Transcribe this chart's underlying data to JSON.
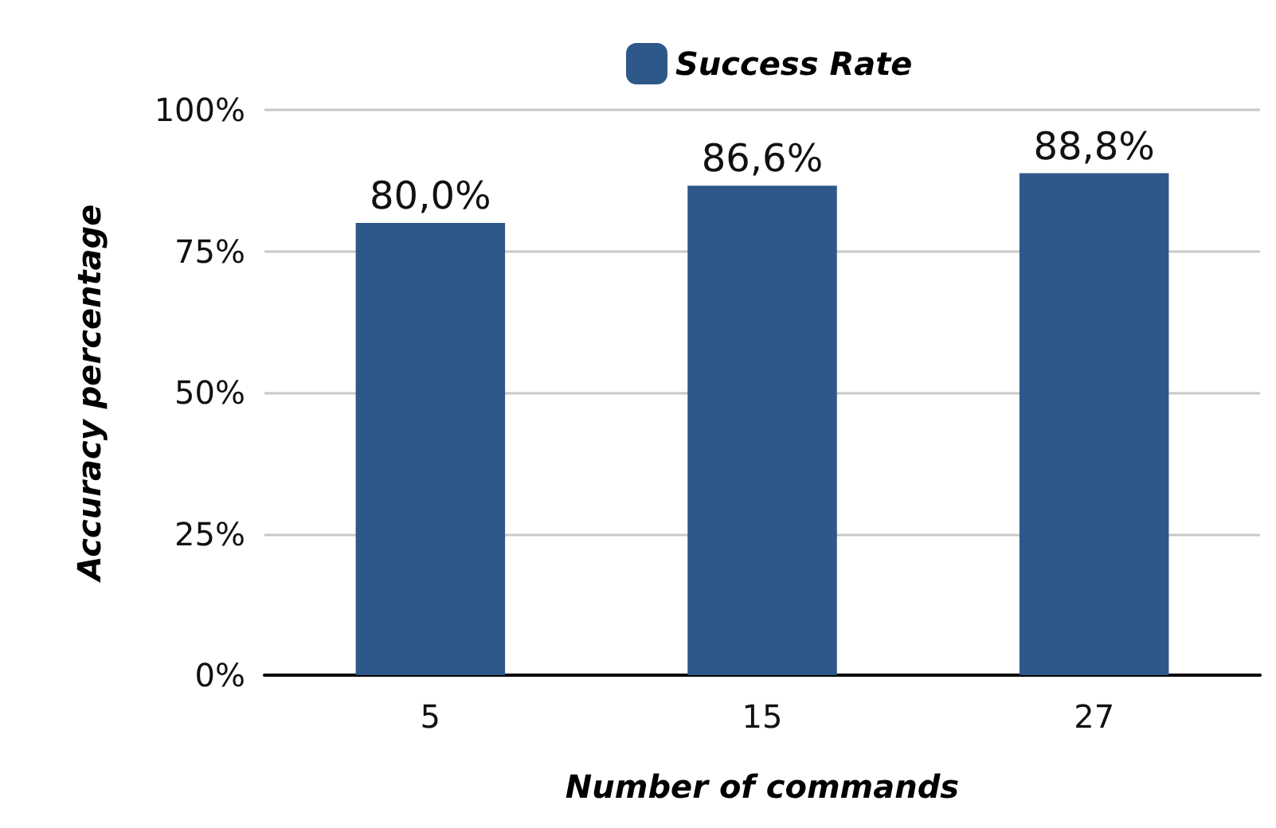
{
  "chart_data": {
    "type": "bar",
    "xlabel": "Number of commands",
    "ylabel": "Accuracy percentage",
    "categories": [
      "5",
      "15",
      "27"
    ],
    "series": [
      {
        "name": "Success Rate",
        "color": "#2e5889",
        "values": [
          80.0,
          86.6,
          88.8
        ],
        "value_labels": [
          "80,0%",
          "86,6%",
          "88,8%"
        ]
      }
    ],
    "ylim": [
      0,
      100
    ],
    "yticks": [
      {
        "value": 0,
        "label": "0%"
      },
      {
        "value": 25,
        "label": "25%"
      },
      {
        "value": 50,
        "label": "50%"
      },
      {
        "value": 75,
        "label": "75%"
      },
      {
        "value": 100,
        "label": "100%"
      }
    ],
    "grid": "y",
    "legend": "top"
  }
}
